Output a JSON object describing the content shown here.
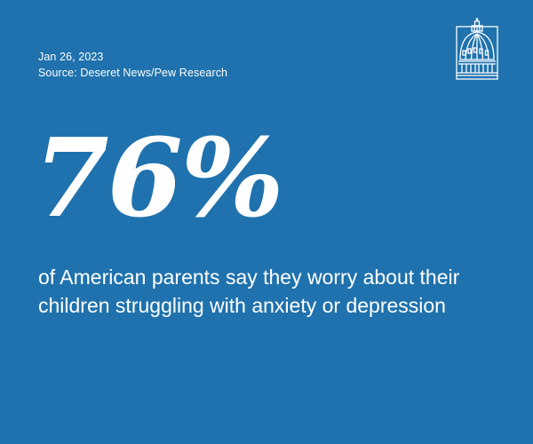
{
  "meta": {
    "date": "Jan 26, 2023",
    "source": "Source: Deseret News/Pew Research"
  },
  "headline_stat": "76%",
  "caption": "of American parents say they worry about their children struggling with anxiety or depression",
  "logo": {
    "icon": "capitol-dome-icon"
  },
  "colors": {
    "background": "#1f72ad",
    "text": "#ffffff"
  }
}
